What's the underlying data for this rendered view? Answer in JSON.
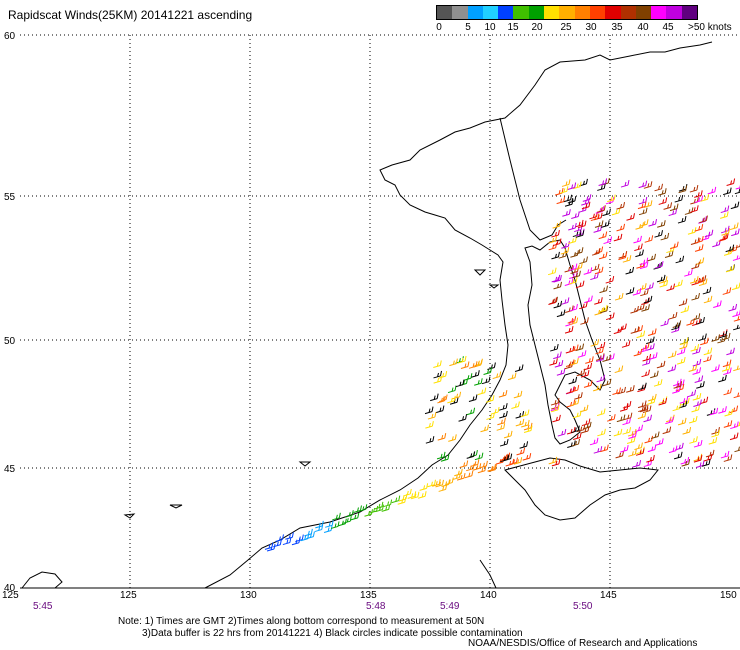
{
  "title": "Rapidscat Winds(25KM) 20141221 ascending",
  "legend": {
    "colors": [
      "#555555",
      "#909090",
      "#00a0ff",
      "#20d0ff",
      "#0040ff",
      "#40c000",
      "#00a000",
      "#ffe000",
      "#ffb000",
      "#ff8000",
      "#ff4000",
      "#e00000",
      "#b03000",
      "#804000",
      "#ff00ff",
      "#c000e0",
      "#600080"
    ],
    "labels": [
      "0",
      "5",
      "10",
      "15",
      "20",
      "25",
      "30",
      "35",
      "40",
      "45",
      ">50 knots"
    ]
  },
  "axes": {
    "lon_ticks": [
      "125",
      "125",
      "130",
      "135",
      "140",
      "145",
      "150"
    ],
    "lat_ticks": [
      "40",
      "45",
      "50",
      "55",
      "60"
    ]
  },
  "times": [
    "5:45",
    "5:48",
    "5:49",
    "5:50"
  ],
  "note": {
    "line1": "Note: 1) Times are GMT 2)Times along bottom correspond to measurement at 50N",
    "line2": "3)Data buffer is 22 hrs from 20141221 4) Black circles indicate possible contamination"
  },
  "credit": "NOAA/NESDIS/Office of Research and Applications"
}
